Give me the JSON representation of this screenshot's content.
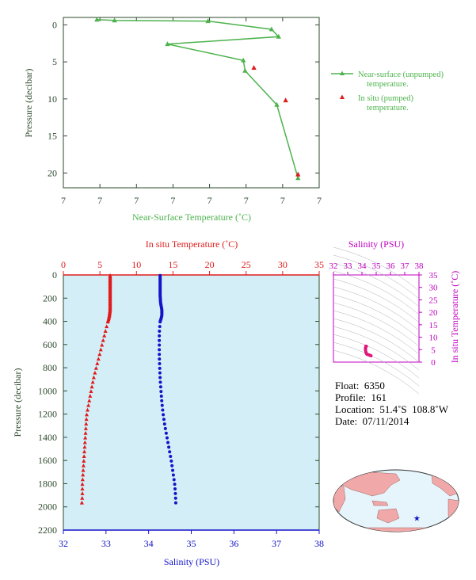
{
  "colors": {
    "near_surface": "#4db34d",
    "insitu": "#e01b1b",
    "salinity": "#1414c8",
    "panel_bg": "#d3eef7",
    "axis_text": "#2e4a2e",
    "magenta": "#c000c0"
  },
  "chart_data": [
    {
      "type": "line",
      "xlabel": "Near-Surface Temperature (˚C)",
      "ylabel": "Pressure (decibar)",
      "xticks": [
        "7",
        "7",
        "7",
        "7",
        "7",
        "7",
        "7",
        "7"
      ],
      "yticks": [
        "0",
        "5",
        "10",
        "15",
        "20"
      ],
      "ylim": [
        22,
        -1
      ],
      "legend_position": "right",
      "legend": {
        "near_surface_1": "Near-surface (unpumped)",
        "near_surface_2": "temperature.",
        "insitu_1": "In situ (pumped)",
        "insitu_2": "temperature."
      },
      "series": [
        {
          "name": "Near-surface (unpumped) temperature.",
          "marker": "triangle",
          "points": [
            [
              0.19,
              -0.7
            ],
            [
              0.29,
              -0.6
            ],
            [
              0.82,
              -0.5
            ],
            [
              1.18,
              0.6
            ],
            [
              1.22,
              1.6
            ],
            [
              0.59,
              2.6
            ],
            [
              1.02,
              4.8
            ],
            [
              1.03,
              6.2
            ],
            [
              1.21,
              10.8
            ],
            [
              1.33,
              20.7
            ]
          ]
        },
        {
          "name": "In situ (pumped) temperature.",
          "marker": "triangle",
          "points": [
            [
              1.08,
              5.8
            ],
            [
              1.26,
              10.2
            ],
            [
              1.33,
              20.2
            ]
          ]
        }
      ]
    },
    {
      "type": "scatter",
      "xlabel_top": "In situ Temperature (˚C)",
      "xlabel_bottom": "Salinity (PSU)",
      "ylabel": "Pressure (decibar)",
      "temp_range": [
        0,
        35
      ],
      "temp_ticks": [
        "0",
        "5",
        "10",
        "15",
        "20",
        "25",
        "30",
        "35"
      ],
      "sal_range": [
        32,
        38
      ],
      "sal_ticks": [
        "32",
        "33",
        "34",
        "35",
        "36",
        "37",
        "38"
      ],
      "pres_range": [
        0,
        2200
      ],
      "pres_ticks": [
        "0",
        "200",
        "400",
        "600",
        "800",
        "1000",
        "1200",
        "1400",
        "1600",
        "1800",
        "2000",
        "2200"
      ],
      "temperature": {
        "pressure": [
          5,
          60,
          120,
          180,
          240,
          300,
          350,
          380,
          400,
          500,
          600,
          700,
          800,
          900,
          1000,
          1100,
          1200,
          1300,
          1400,
          1500,
          1600,
          1700,
          1800,
          1900,
          2000
        ],
        "values": [
          6.4,
          6.4,
          6.4,
          6.4,
          6.4,
          6.4,
          6.3,
          6.2,
          6.1,
          5.7,
          5.3,
          4.9,
          4.5,
          4.1,
          3.8,
          3.5,
          3.2,
          3.1,
          3.0,
          2.9,
          2.8,
          2.7,
          2.6,
          2.6,
          2.5
        ]
      },
      "salinity": {
        "pressure": [
          5,
          60,
          120,
          180,
          240,
          300,
          350,
          380,
          400,
          500,
          600,
          700,
          800,
          900,
          1000,
          1100,
          1200,
          1300,
          1400,
          1500,
          1600,
          1700,
          1800,
          1900,
          2000
        ],
        "values": [
          34.27,
          34.27,
          34.27,
          34.27,
          34.28,
          34.31,
          34.31,
          34.29,
          34.27,
          34.25,
          34.25,
          34.25,
          34.26,
          34.27,
          34.29,
          34.31,
          34.34,
          34.38,
          34.43,
          34.48,
          34.53,
          34.57,
          34.61,
          34.63,
          34.64
        ]
      }
    },
    {
      "type": "scatter",
      "xlabel": "Salinity (PSU)",
      "ylabel": "In situ Temperature (˚C)",
      "sal_range": [
        32,
        38
      ],
      "sal_ticks": [
        "32",
        "33",
        "34",
        "35",
        "36",
        "37",
        "38"
      ],
      "temp_range": [
        0,
        35
      ],
      "temp_ticks": [
        "0",
        "5",
        "10",
        "15",
        "20",
        "25",
        "30",
        "35"
      ]
    }
  ],
  "float_info": {
    "float": "Float:  6350",
    "profile": "Profile:  161",
    "location": "Location:  51.4˚S  108.8˚W",
    "date": "Date:  07/11/2014"
  },
  "map": {
    "marker_icon": "star-icon",
    "marker_lat": -51.4,
    "marker_lon": -108.8
  }
}
